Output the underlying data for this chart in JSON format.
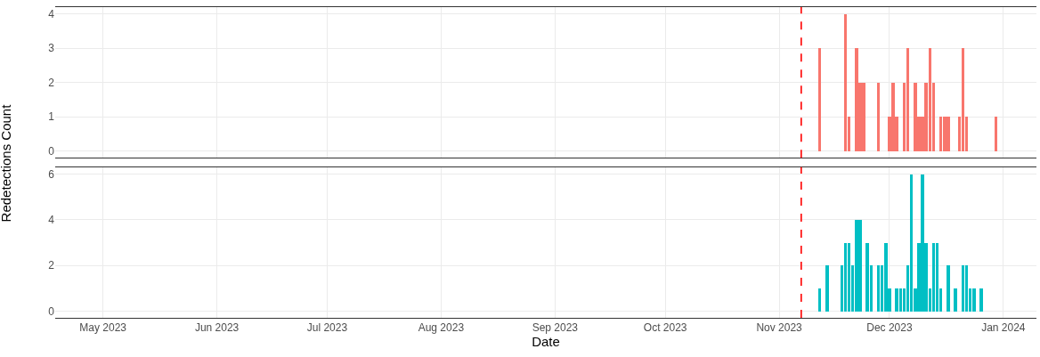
{
  "chart_data": [
    {
      "type": "bar",
      "ylabel": "Redetections Count",
      "x": [
        "2023-11-12",
        "2023-11-19",
        "2023-11-20",
        "2023-11-22",
        "2023-11-23",
        "2023-11-24",
        "2023-11-28",
        "2023-12-01",
        "2023-12-02",
        "2023-12-03",
        "2023-12-05",
        "2023-12-06",
        "2023-12-08",
        "2023-12-09",
        "2023-12-10",
        "2023-12-11",
        "2023-12-12",
        "2023-12-13",
        "2023-12-15",
        "2023-12-16",
        "2023-12-17",
        "2023-12-20",
        "2023-12-21",
        "2023-12-22",
        "2023-12-30"
      ],
      "series": [
        {
          "color": "#f8766d",
          "values": [
            3,
            4,
            1,
            3,
            2,
            2,
            2,
            1,
            2,
            1,
            2,
            3,
            2,
            1,
            1,
            2,
            3,
            2,
            1,
            1,
            1,
            1,
            3,
            1,
            1
          ]
        }
      ],
      "xlim": [
        "2023-04-18",
        "2024-01-10"
      ],
      "xticks": [
        {
          "value": "2023-05-01",
          "label": null
        },
        {
          "value": "2023-06-01",
          "label": null
        },
        {
          "value": "2023-07-01",
          "label": null
        },
        {
          "value": "2023-08-01",
          "label": null
        },
        {
          "value": "2023-09-01",
          "label": null
        },
        {
          "value": "2023-10-01",
          "label": null
        },
        {
          "value": "2023-11-01",
          "label": null
        },
        {
          "value": "2023-12-01",
          "label": null
        },
        {
          "value": "2024-01-01",
          "label": null
        }
      ],
      "ylim": [
        -0.2,
        4.2
      ],
      "yticks": [
        0,
        1,
        2,
        3,
        4
      ],
      "grid": true,
      "tick_labels": "y",
      "ref_lines": [
        {
          "axis": "x",
          "value": "2023-11-07",
          "color": "#ff0000",
          "line_style": "dashed"
        }
      ]
    },
    {
      "type": "bar",
      "xlabel": "Date",
      "x": [
        "2023-11-12",
        "2023-11-14",
        "2023-11-18",
        "2023-11-19",
        "2023-11-20",
        "2023-11-21",
        "2023-11-22",
        "2023-11-23",
        "2023-11-25",
        "2023-11-26",
        "2023-11-28",
        "2023-11-29",
        "2023-11-30",
        "2023-12-01",
        "2023-12-03",
        "2023-12-04",
        "2023-12-05",
        "2023-12-06",
        "2023-12-07",
        "2023-12-08",
        "2023-12-09",
        "2023-12-10",
        "2023-12-11",
        "2023-12-12",
        "2023-12-13",
        "2023-12-14",
        "2023-12-15",
        "2023-12-17",
        "2023-12-19",
        "2023-12-21",
        "2023-12-22",
        "2023-12-23",
        "2023-12-24",
        "2023-12-26"
      ],
      "series": [
        {
          "color": "#00bfc4",
          "values": [
            1,
            2,
            2,
            3,
            3,
            2,
            4,
            4,
            3,
            2,
            2,
            2,
            3,
            1,
            1,
            1,
            1,
            2,
            6,
            1,
            3,
            6,
            3,
            1,
            3,
            3,
            1,
            2,
            1,
            2,
            2,
            1,
            1,
            1
          ]
        }
      ],
      "xlim": [
        "2023-04-18",
        "2024-01-10"
      ],
      "xticks": [
        {
          "value": "2023-05-01",
          "label": "May 2023"
        },
        {
          "value": "2023-06-01",
          "label": "Jun 2023"
        },
        {
          "value": "2023-07-01",
          "label": "Jul 2023"
        },
        {
          "value": "2023-08-01",
          "label": "Aug 2023"
        },
        {
          "value": "2023-09-01",
          "label": "Sep 2023"
        },
        {
          "value": "2023-10-01",
          "label": "Oct 2023"
        },
        {
          "value": "2023-11-01",
          "label": "Nov 2023"
        },
        {
          "value": "2023-12-01",
          "label": "Dec 2023"
        },
        {
          "value": "2024-01-01",
          "label": "Jan 2024"
        }
      ],
      "ylim": [
        -0.3,
        6.3
      ],
      "yticks": [
        0,
        2,
        4,
        6
      ],
      "grid": true,
      "ref_lines": [
        {
          "axis": "x",
          "value": "2023-11-07",
          "color": "#ff0000",
          "line_style": "dashed"
        }
      ]
    }
  ]
}
